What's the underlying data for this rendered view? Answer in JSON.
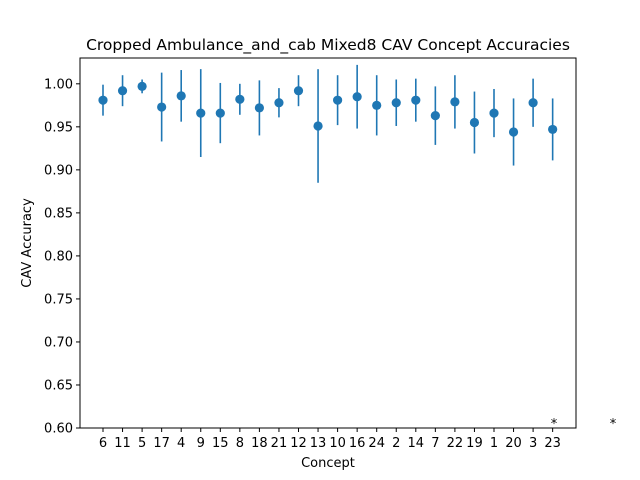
{
  "chart_data": {
    "type": "scatter",
    "title": "Cropped Ambulance_and_cab Mixed8 CAV Concept Accuracies",
    "xlabel": "Concept",
    "ylabel": "CAV Accuracy",
    "ylim": [
      0.6,
      1.03
    ],
    "yticks": [
      "0.60",
      "0.65",
      "0.70",
      "0.75",
      "0.80",
      "0.85",
      "0.90",
      "0.95",
      "1.00"
    ],
    "categories": [
      "6",
      "11",
      "5",
      "17",
      "4",
      "9",
      "15",
      "8",
      "18",
      "21",
      "12",
      "13",
      "10",
      "16",
      "24",
      "2",
      "14",
      "7",
      "22",
      "19",
      "1",
      "20",
      "3",
      "23"
    ],
    "values": [
      0.981,
      0.992,
      0.997,
      0.973,
      0.986,
      0.966,
      0.966,
      0.982,
      0.972,
      0.978,
      0.992,
      0.951,
      0.981,
      0.985,
      0.975,
      0.978,
      0.981,
      0.963,
      0.979,
      0.955,
      0.966,
      0.944,
      0.978,
      0.947
    ],
    "errors": [
      0.018,
      0.018,
      0.008,
      0.04,
      0.03,
      0.051,
      0.035,
      0.018,
      0.032,
      0.017,
      0.018,
      0.066,
      0.029,
      0.037,
      0.035,
      0.027,
      0.025,
      0.034,
      0.031,
      0.036,
      0.028,
      0.039,
      0.028,
      0.036
    ],
    "significance_markers": [
      "*",
      "*"
    ],
    "marker_color": "#1f77b4",
    "grid": false,
    "legend": "none"
  }
}
